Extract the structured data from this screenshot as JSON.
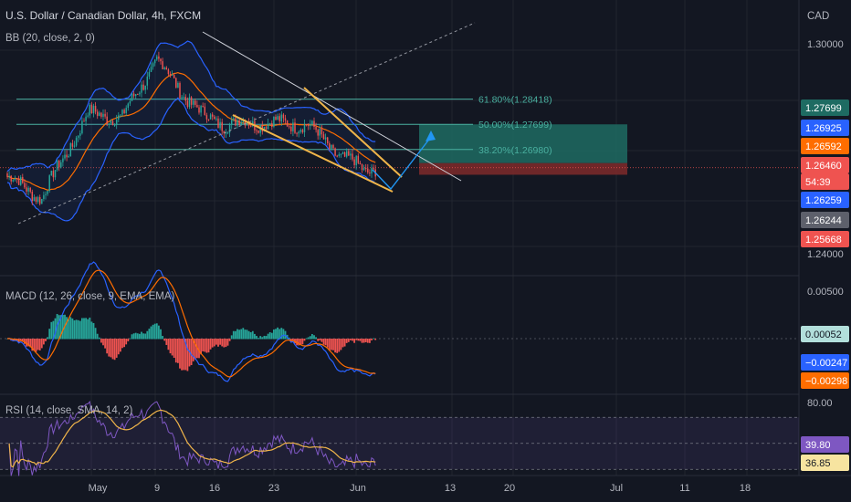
{
  "header": {
    "symbol": "U.S. Dollar / Canadian Dollar, 4h, FXCM",
    "bb": "BB (20, close, 2, 0)",
    "currency": "CAD"
  },
  "macd": {
    "label": "MACD (12, 26, close, 9, EMA, EMA)"
  },
  "rsi": {
    "label": "RSI (14, close, SMA, 14, 2)"
  },
  "colors": {
    "bg": "#131722",
    "grid": "#2a2e39",
    "up": "#26a69a",
    "down": "#ef5350",
    "bb": "#2962ff",
    "basis": "#ff6d00",
    "fib": "#4ab0a0",
    "wedge": "#f0b54a",
    "trend": "#d1d4dc",
    "long": "#1e6b62",
    "short": "#7f2a2a",
    "rsi": "#7e57c2",
    "rsi_ma": "#f0b54a"
  },
  "chart_data": [
    {
      "type": "candlestick",
      "title": "U.S. Dollar / Canadian Dollar, 4h, FXCM",
      "indicator": "BB (20, close, 2, 0)",
      "x_ticks": [
        "May",
        "9",
        "16",
        "23",
        "Jun",
        "13",
        "20",
        "Jul",
        "11",
        "18"
      ],
      "y_ticks": [
        "1.30000",
        "1.24000"
      ],
      "ylim": [
        1.237,
        1.307
      ],
      "overall_path": [
        {
          "day": 0,
          "price": 1.262
        },
        {
          "day": 3,
          "price": 1.256
        },
        {
          "day": 7,
          "price": 1.28
        },
        {
          "day": 10,
          "price": 1.279
        },
        {
          "day": 13,
          "price": 1.2955
        },
        {
          "day": 15,
          "price": 1.287
        },
        {
          "day": 17,
          "price": 1.2795
        },
        {
          "day": 19,
          "price": 1.277
        },
        {
          "day": 22,
          "price": 1.2775
        },
        {
          "day": 26,
          "price": 1.277
        },
        {
          "day": 29,
          "price": 1.268
        },
        {
          "day": 31,
          "price": 1.264
        },
        {
          "day": 32,
          "price": 1.2646
        }
      ],
      "fibonacci": [
        {
          "label": "61.80%(1.28418)",
          "value": 1.28418
        },
        {
          "label": "50.00%(1.27699)",
          "value": 1.27699
        },
        {
          "label": "38.20%(1.26980)",
          "value": 1.2698
        }
      ],
      "position": {
        "entry": 1.26592,
        "target": 1.27699,
        "stop": 1.26259
      },
      "price_labels": [
        {
          "text": "1.27699",
          "value": 1.27699,
          "color": "#1e6b62"
        },
        {
          "text": "1.26925",
          "value": 1.26925,
          "color": "#2962ff"
        },
        {
          "text": "1.26592",
          "value": 1.26592,
          "color": "#ff6d00"
        },
        {
          "text": "1.26460",
          "value": 1.2646,
          "color": "#ef5350"
        },
        {
          "text": "54:39",
          "value": 1.26375,
          "color": "#ef5350"
        },
        {
          "text": "1.26259",
          "value": 1.26259,
          "color": "#2962ff"
        },
        {
          "text": "1.26244",
          "value": 1.26244,
          "color": "#5d606b"
        },
        {
          "text": "1.25668",
          "value": 1.25668,
          "color": "#ef5350"
        }
      ]
    },
    {
      "type": "bar",
      "title": "MACD (12, 26, close, 9, EMA, EMA)",
      "y_ticks": [
        "0.00500"
      ],
      "ylim": [
        -0.0057,
        0.0065
      ],
      "price_labels": [
        {
          "text": "0.00052",
          "value": 0.00052,
          "color": "#b2dfdb"
        },
        {
          "text": "−0.00247",
          "value": -0.00247,
          "color": "#2962ff"
        },
        {
          "text": "−0.00298",
          "value": -0.00298,
          "color": "#ff6d00"
        }
      ]
    },
    {
      "type": "line",
      "title": "RSI (14, close, SMA, 14, 2)",
      "y_ticks": [
        "80.00"
      ],
      "ylim": [
        25,
        82
      ],
      "band": [
        30,
        70
      ],
      "price_labels": [
        {
          "text": "39.80",
          "value": 39.8,
          "color": "#7e57c2"
        },
        {
          "text": "36.85",
          "value": 36.85,
          "color": "#f7e4a0"
        }
      ]
    }
  ]
}
